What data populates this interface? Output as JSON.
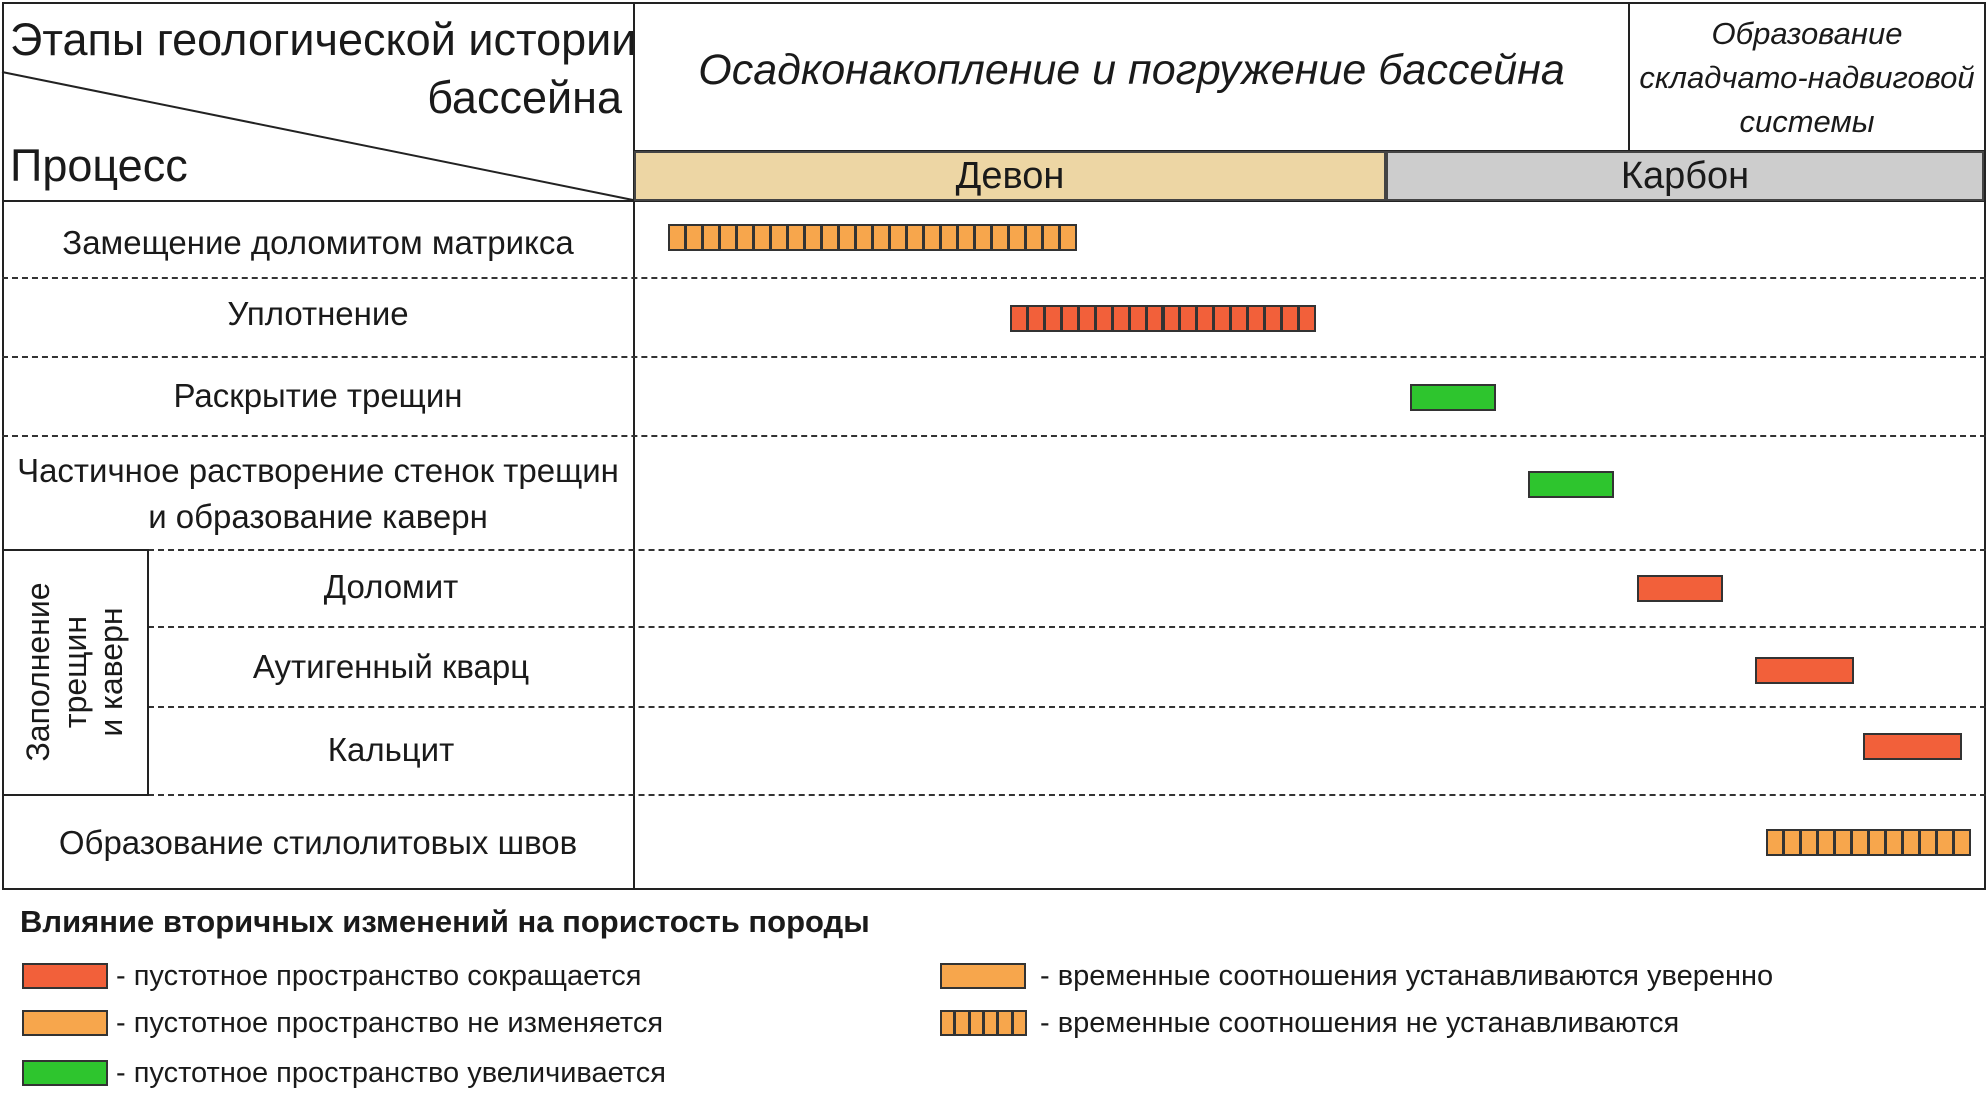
{
  "header": {
    "stages_title_line1": "Этапы геологической истории",
    "stages_title_line2": "бассейна",
    "process_label": "Процесс",
    "stage_main": "Осадконакопление и погружение бассейна",
    "stage_fold_line1": "Образование",
    "stage_fold_line2": "складчато-надвиговой",
    "stage_fold_line3": "системы"
  },
  "periods": [
    {
      "label": "Девон",
      "color": "#edd6a4"
    },
    {
      "label": "Карбон",
      "color": "#cdcdcd"
    }
  ],
  "group_label": {
    "line1": "Заполнение",
    "line2": "трещин",
    "line3": "и каверн"
  },
  "processes": [
    {
      "label": "Замещение доломитом матрикса",
      "type": "unresolved",
      "porosity": "unchanged"
    },
    {
      "label": "Уплотнение",
      "type": "unresolved",
      "porosity": "reduced"
    },
    {
      "label": "Раскрытие трещин",
      "type": "confident",
      "porosity": "increased"
    },
    {
      "label_line1": "Частичное растворение стенок трещин",
      "label_line2": "и образование каверн",
      "type": "confident",
      "porosity": "increased"
    },
    {
      "label": "Доломит",
      "type": "confident",
      "porosity": "reduced"
    },
    {
      "label": "Аутигенный кварц",
      "type": "confident",
      "porosity": "reduced"
    },
    {
      "label": "Кальцит",
      "type": "confident",
      "porosity": "reduced"
    },
    {
      "label": "Образование стилолитовых швов",
      "type": "unresolved",
      "porosity": "unchanged"
    }
  ],
  "legend": {
    "title": "Влияние вторичных изменений на пористость породы",
    "items": [
      {
        "label": "- пустотное пространство сокращается",
        "color": "#f2603a"
      },
      {
        "label": "- пустотное пространство не изменяется",
        "color": "#f7a64c"
      },
      {
        "label": "- пустотное пространство увеличивается",
        "color": "#2ec52e"
      },
      {
        "label": "- временные соотношения устанавливаются уверенно",
        "color": "#f7a64c"
      },
      {
        "label": "- временные соотношения не устанавливаются",
        "color": "#f7a64c"
      }
    ]
  },
  "colors": {
    "reduced": "#f2603a",
    "unchanged": "#f7a64c",
    "increased": "#2ec52e"
  }
}
